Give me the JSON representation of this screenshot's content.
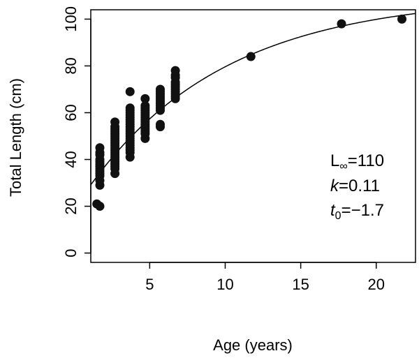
{
  "chart_data": {
    "type": "scatter",
    "xlabel": "Age (years)",
    "ylabel": "Total Length (cm)",
    "xlim": [
      1.1,
      22.6
    ],
    "ylim": [
      -4,
      104
    ],
    "x_ticks": [
      5,
      10,
      15,
      20
    ],
    "y_ticks": [
      0,
      20,
      40,
      60,
      80,
      100
    ],
    "x_tick_labels": [
      "5",
      "10",
      "15",
      "20"
    ],
    "y_tick_labels": [
      "0",
      "20",
      "40",
      "60",
      "80",
      "100"
    ],
    "grid": false,
    "legend": "none",
    "point_color": "#111111",
    "curve_color": "#000000",
    "points": [
      {
        "x": 1.5,
        "y": 21
      },
      {
        "x": 1.7,
        "y": 20
      },
      {
        "x": 1.7,
        "y": 29
      },
      {
        "x": 1.7,
        "y": 31
      },
      {
        "x": 1.7,
        "y": 33
      },
      {
        "x": 1.7,
        "y": 34
      },
      {
        "x": 1.7,
        "y": 35
      },
      {
        "x": 1.7,
        "y": 36
      },
      {
        "x": 1.7,
        "y": 37
      },
      {
        "x": 1.7,
        "y": 38
      },
      {
        "x": 1.7,
        "y": 39
      },
      {
        "x": 1.7,
        "y": 40
      },
      {
        "x": 1.7,
        "y": 42
      },
      {
        "x": 1.7,
        "y": 43
      },
      {
        "x": 1.7,
        "y": 45
      },
      {
        "x": 2.7,
        "y": 34
      },
      {
        "x": 2.7,
        "y": 36
      },
      {
        "x": 2.7,
        "y": 37
      },
      {
        "x": 2.7,
        "y": 38
      },
      {
        "x": 2.7,
        "y": 39
      },
      {
        "x": 2.7,
        "y": 40
      },
      {
        "x": 2.7,
        "y": 41
      },
      {
        "x": 2.7,
        "y": 42
      },
      {
        "x": 2.7,
        "y": 43
      },
      {
        "x": 2.7,
        "y": 44
      },
      {
        "x": 2.7,
        "y": 45
      },
      {
        "x": 2.7,
        "y": 46
      },
      {
        "x": 2.7,
        "y": 47
      },
      {
        "x": 2.7,
        "y": 48
      },
      {
        "x": 2.7,
        "y": 49
      },
      {
        "x": 2.7,
        "y": 50
      },
      {
        "x": 2.7,
        "y": 51
      },
      {
        "x": 2.7,
        "y": 52
      },
      {
        "x": 2.7,
        "y": 53
      },
      {
        "x": 2.7,
        "y": 54
      },
      {
        "x": 2.7,
        "y": 56
      },
      {
        "x": 3.7,
        "y": 41
      },
      {
        "x": 3.7,
        "y": 43
      },
      {
        "x": 3.7,
        "y": 44
      },
      {
        "x": 3.7,
        "y": 45
      },
      {
        "x": 3.7,
        "y": 46
      },
      {
        "x": 3.7,
        "y": 47
      },
      {
        "x": 3.7,
        "y": 48
      },
      {
        "x": 3.7,
        "y": 49
      },
      {
        "x": 3.7,
        "y": 50
      },
      {
        "x": 3.7,
        "y": 51
      },
      {
        "x": 3.7,
        "y": 52
      },
      {
        "x": 3.7,
        "y": 53
      },
      {
        "x": 3.7,
        "y": 54
      },
      {
        "x": 3.7,
        "y": 55
      },
      {
        "x": 3.7,
        "y": 56
      },
      {
        "x": 3.7,
        "y": 57
      },
      {
        "x": 3.7,
        "y": 58
      },
      {
        "x": 3.7,
        "y": 59
      },
      {
        "x": 3.7,
        "y": 60
      },
      {
        "x": 3.7,
        "y": 61
      },
      {
        "x": 3.7,
        "y": 62
      },
      {
        "x": 3.7,
        "y": 69
      },
      {
        "x": 4.7,
        "y": 49
      },
      {
        "x": 4.7,
        "y": 51
      },
      {
        "x": 4.7,
        "y": 52
      },
      {
        "x": 4.7,
        "y": 53
      },
      {
        "x": 4.7,
        "y": 54
      },
      {
        "x": 4.7,
        "y": 55
      },
      {
        "x": 4.7,
        "y": 56
      },
      {
        "x": 4.7,
        "y": 57
      },
      {
        "x": 4.7,
        "y": 58
      },
      {
        "x": 4.7,
        "y": 59
      },
      {
        "x": 4.7,
        "y": 60
      },
      {
        "x": 4.7,
        "y": 61
      },
      {
        "x": 4.7,
        "y": 62
      },
      {
        "x": 4.7,
        "y": 63
      },
      {
        "x": 4.7,
        "y": 66
      },
      {
        "x": 5.7,
        "y": 54
      },
      {
        "x": 5.7,
        "y": 55
      },
      {
        "x": 5.7,
        "y": 61
      },
      {
        "x": 5.7,
        "y": 62
      },
      {
        "x": 5.7,
        "y": 63
      },
      {
        "x": 5.7,
        "y": 64
      },
      {
        "x": 5.7,
        "y": 65
      },
      {
        "x": 5.7,
        "y": 66
      },
      {
        "x": 5.7,
        "y": 67
      },
      {
        "x": 5.7,
        "y": 68
      },
      {
        "x": 5.7,
        "y": 69
      },
      {
        "x": 5.7,
        "y": 70
      },
      {
        "x": 6.7,
        "y": 66
      },
      {
        "x": 6.7,
        "y": 67
      },
      {
        "x": 6.7,
        "y": 68
      },
      {
        "x": 6.7,
        "y": 69
      },
      {
        "x": 6.7,
        "y": 70
      },
      {
        "x": 6.7,
        "y": 71
      },
      {
        "x": 6.7,
        "y": 72
      },
      {
        "x": 6.7,
        "y": 73
      },
      {
        "x": 6.7,
        "y": 75
      },
      {
        "x": 6.7,
        "y": 76
      },
      {
        "x": 6.7,
        "y": 78
      },
      {
        "x": 11.7,
        "y": 84
      },
      {
        "x": 17.7,
        "y": 98
      },
      {
        "x": 21.7,
        "y": 100
      }
    ],
    "fit": {
      "model": "von Bertalanffy",
      "L_inf": 110,
      "k": 0.11,
      "t0": -1.7
    },
    "annotation": {
      "line1_prefix": "L",
      "line1_sub": "∞",
      "line1_value": "=110",
      "line2_var": "k",
      "line2_value": "=0.11",
      "line3_var": "t",
      "line3_sub": "0",
      "line3_value": "=−1.7"
    }
  }
}
